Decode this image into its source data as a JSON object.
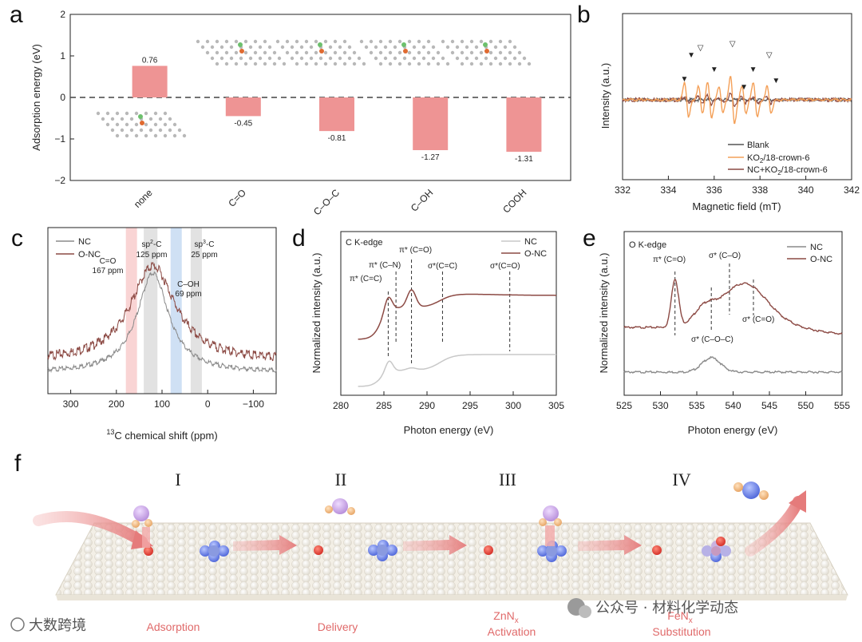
{
  "panels": {
    "a": "a",
    "b": "b",
    "c": "c",
    "d": "d",
    "e": "e",
    "f": "f"
  },
  "colors": {
    "bar": "#ee9494",
    "blank": "#555555",
    "ko2": "#f4a058",
    "nc_ko2": "#8c4a44",
    "nc_gray": "#8a8a8a",
    "onc_brown": "#8c4a44",
    "nc_light": "#c8c8c8",
    "stage_label": "#e06a6a",
    "band_pink": "#f9d4d4",
    "band_gray": "#e2e2e2",
    "band_blue": "#cfe0f4"
  },
  "chart_data": [
    {
      "id": "a",
      "type": "bar",
      "title": "",
      "xlabel": "",
      "ylabel": "Adsorption energy (eV)",
      "categories": [
        "none",
        "C=O",
        "C–O–C",
        "C–OH",
        "COOH"
      ],
      "values": [
        0.76,
        -0.45,
        -0.81,
        -1.27,
        -1.31
      ],
      "value_labels": [
        "0.76",
        "-0.45",
        "-0.81",
        "-1.27",
        "-1.31"
      ],
      "ylim": [
        -2,
        2
      ],
      "yticks": [
        -2,
        -1,
        0,
        1,
        2
      ],
      "ytick_labels": [
        "−2",
        "−1",
        "0",
        "1",
        "2"
      ],
      "reference_line": 0
    },
    {
      "id": "b",
      "type": "line",
      "xlabel": "Magnetic field (mT)",
      "ylabel": "Intensity (a.u.)",
      "xlim": [
        332,
        342
      ],
      "xticks": [
        332,
        334,
        336,
        338,
        340,
        342
      ],
      "ytick_labels": [],
      "legend_position": "bottom-right",
      "series": [
        {
          "name": "Blank",
          "key": "blank"
        },
        {
          "name_main": "KO",
          "name_sub": "2",
          "name_rest": "/18-crown-6",
          "key": "ko2"
        },
        {
          "name_main": "NC+KO",
          "name_sub": "2",
          "name_rest": "/18-crown-6",
          "key": "nc_ko2"
        }
      ],
      "peaks_mT": [
        334.8,
        335.4,
        335.8,
        336.3,
        336.8,
        337.3,
        337.8,
        338.4
      ],
      "markers": {
        "open_triangle": "▽",
        "filled_triangle": "▼"
      }
    },
    {
      "id": "c",
      "type": "line",
      "xlabel_sup": "13",
      "xlabel_rest": "C chemical shift (ppm)",
      "xlim": [
        350,
        -150
      ],
      "xticks": [
        300,
        200,
        100,
        0,
        -100
      ],
      "xtick_labels": [
        "300",
        "200",
        "100",
        "0",
        "−100"
      ],
      "legend_position": "top-left",
      "series": [
        {
          "name": "NC",
          "key": "nc_gray"
        },
        {
          "name": "O-NC",
          "key": "onc_brown"
        }
      ],
      "annotations": [
        {
          "line1": "C=O",
          "line2": "167 ppm",
          "ppm": 167,
          "band": "band_pink",
          "color": "#e06a6a"
        },
        {
          "line1_main": "sp",
          "line1_sup": "2",
          "line1_rest": "-C",
          "line2": "125 ppm",
          "ppm": 125,
          "band": "band_gray",
          "color": "#222"
        },
        {
          "line1": "C–OH",
          "line2": "69 ppm",
          "ppm": 69,
          "band": "band_blue",
          "color": "#5b8fd0"
        },
        {
          "line1_main": "sp",
          "line1_sup": "3",
          "line1_rest": "-C",
          "line2": "25 ppm",
          "ppm": 25,
          "band": "band_gray",
          "color": "#222"
        }
      ]
    },
    {
      "id": "d",
      "type": "line",
      "inset_label": "C K-edge",
      "xlabel": "Photon energy (eV)",
      "ylabel": "Normalized intensity (a.u.)",
      "xlim": [
        280,
        305
      ],
      "xticks": [
        280,
        285,
        290,
        295,
        300,
        305
      ],
      "legend_position": "top-right",
      "series": [
        {
          "name": "NC",
          "key": "nc_light"
        },
        {
          "name": "O-NC",
          "key": "onc_brown"
        }
      ],
      "peak_labels": [
        {
          "text": "π* (C=C)",
          "eV": 285.5
        },
        {
          "text": "π* (C–N)",
          "eV": 286.4
        },
        {
          "text": "π* (C=O)",
          "eV": 288.2
        },
        {
          "text": "σ*(C=C)",
          "eV": 291.8
        },
        {
          "text": "σ*(C=O)",
          "eV": 299.6
        }
      ]
    },
    {
      "id": "e",
      "type": "line",
      "inset_label": "O K-edge",
      "xlabel": "Photon energy (eV)",
      "ylabel": "Normalized intensity (a.u.)",
      "xlim": [
        525,
        555
      ],
      "xticks": [
        525,
        530,
        535,
        540,
        545,
        550,
        555
      ],
      "legend_position": "top-right",
      "series": [
        {
          "name": "NC",
          "key": "nc_gray"
        },
        {
          "name": "O-NC",
          "key": "onc_brown"
        }
      ],
      "peak_labels": [
        {
          "text": "π* (C=O)",
          "eV": 532
        },
        {
          "text": "σ* (C–O)",
          "eV": 539.5
        },
        {
          "text": "σ* (C–O–C)",
          "eV": 537
        },
        {
          "text": "σ* (C=O)",
          "eV": 542.8
        }
      ]
    }
  ],
  "schematic": {
    "stages": [
      {
        "numeral": "I",
        "label": "Adsorption"
      },
      {
        "numeral": "II",
        "label": "Delivery"
      },
      {
        "numeral": "III",
        "label_main": "ZnN",
        "label_sub": "x",
        "label2": "Activation"
      },
      {
        "numeral": "IV",
        "label_main": "FeN",
        "label_sub": "x",
        "label2": "Substitution"
      }
    ]
  },
  "watermarks": {
    "left": "大数跨境",
    "right": "公众号 · 材料化学动态"
  }
}
